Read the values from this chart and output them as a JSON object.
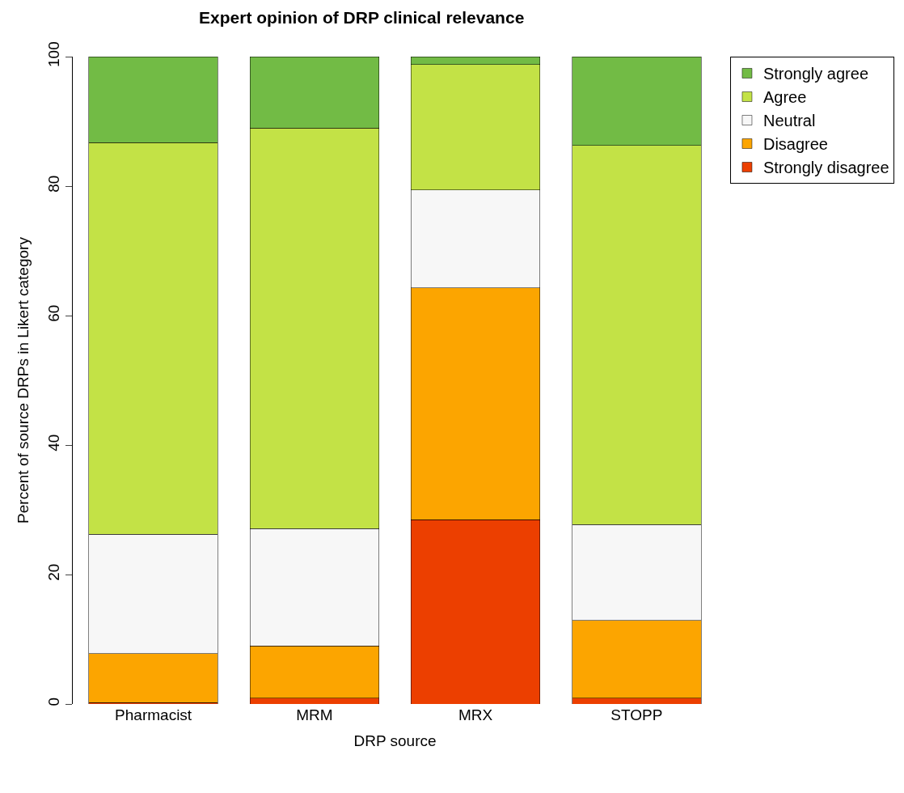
{
  "chart_data": {
    "type": "bar",
    "title": "Expert opinion of DRP clinical relevance",
    "xlabel": "DRP source",
    "ylabel": "Percent of source DRPs in Likert category",
    "categories": [
      "Pharmacist",
      "MRM",
      "MRX",
      "STOPP"
    ],
    "stacked": true,
    "series": [
      {
        "name": "Strongly disagree",
        "color": "#ec3f00",
        "values": [
          0.2,
          0.9,
          28.5,
          0.9
        ]
      },
      {
        "name": "Disagree",
        "color": "#fca500",
        "values": [
          7.6,
          8.1,
          35.8,
          12.0
        ]
      },
      {
        "name": "Neutral",
        "color": "#f7f7f7",
        "values": [
          18.4,
          18.1,
          15.1,
          14.8
        ]
      },
      {
        "name": "Agree",
        "color": "#c3e246",
        "values": [
          60.5,
          61.9,
          19.4,
          58.6
        ]
      },
      {
        "name": "Strongly agree",
        "color": "#72bb45",
        "values": [
          13.3,
          11.0,
          1.2,
          13.7
        ]
      }
    ],
    "ylim": [
      0,
      100
    ],
    "yticks": [
      0,
      20,
      40,
      60,
      80,
      100
    ],
    "grid": false,
    "legend": "top right"
  }
}
